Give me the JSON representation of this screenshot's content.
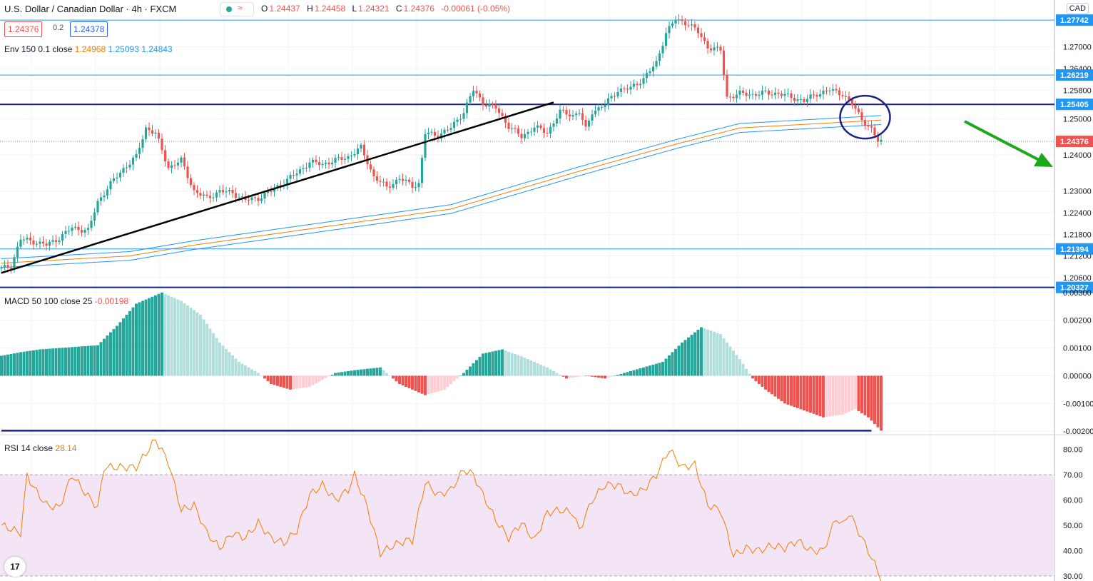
{
  "header": {
    "title": "U.S. Dollar / Canadian Dollar · 4h · FXCM",
    "ohlc": [
      {
        "k": "O",
        "v": "1.24437"
      },
      {
        "k": "H",
        "v": "1.24458"
      },
      {
        "k": "L",
        "v": "1.24321"
      },
      {
        "k": "C",
        "v": "1.24376"
      },
      {
        "k": "",
        "v": "-0.00061 (-0.05%)"
      }
    ],
    "sell_price": "1.24376",
    "spread": "0.2",
    "buy_price": "1.24378",
    "currency": "CAD"
  },
  "indicators": {
    "env_label": "Env 150 0.1 close",
    "env_values": [
      "1.24968",
      "1.25093",
      "1.24843"
    ],
    "macd_label": "MACD 50 100 close 25",
    "macd_value": "-0.00198",
    "rsi_label": "RSI 14 close",
    "rsi_value": "28.14"
  },
  "colors": {
    "up": "#26a69a",
    "down": "#ef5350",
    "hist_up_strong": "#26a69a",
    "hist_up_weak": "#b2dfdb",
    "hist_down_strong": "#ef5350",
    "hist_down_weak": "#ffcdd2",
    "env_mid": "#f57c00",
    "env_band": "#2196f3",
    "level_line": "#2196f3",
    "dark_line": "#1a237e",
    "rsi_line": "#f57c00",
    "rsi_band": "#f3e5f5",
    "arrow": "#1ba91b",
    "price_tag": "#2196f3",
    "current_tag": "#ef5350"
  },
  "chart_data": [
    {
      "type": "candlestick",
      "pane": "price",
      "ylim": [
        1.203,
        1.283
      ],
      "y_ticks": [
        "1.20600",
        "1.21200",
        "1.21800",
        "1.22400",
        "1.23000",
        "1.24000",
        "1.25000",
        "1.25800",
        "1.26400",
        "1.27000"
      ],
      "horizontal_levels": [
        {
          "value": 1.27742,
          "label": "1.27742",
          "style": "thin"
        },
        {
          "value": 1.26219,
          "label": "1.26219",
          "style": "thin"
        },
        {
          "value": 1.25405,
          "label": "1.25405",
          "style": "thick"
        },
        {
          "value": 1.21394,
          "label": "1.21394",
          "style": "thin"
        },
        {
          "value": 1.20327,
          "label": "1.20327",
          "style": "thick"
        }
      ],
      "current_price": {
        "value": 1.24376,
        "label": "1.24376"
      },
      "trendline": {
        "from": [
          0,
          1.2073
        ],
        "to": [
          172,
          1.2546
        ]
      },
      "close_anchors": [
        [
          0,
          1.2085
        ],
        [
          3,
          1.2092
        ],
        [
          6,
          1.2167
        ],
        [
          10,
          1.216
        ],
        [
          14,
          1.215
        ],
        [
          18,
          1.217
        ],
        [
          22,
          1.2198
        ],
        [
          27,
          1.219
        ],
        [
          30,
          1.227
        ],
        [
          34,
          1.232
        ],
        [
          38,
          1.2362
        ],
        [
          42,
          1.2395
        ],
        [
          45,
          1.2475
        ],
        [
          48,
          1.246
        ],
        [
          52,
          1.2365
        ],
        [
          56,
          1.2385
        ],
        [
          60,
          1.23
        ],
        [
          64,
          1.228
        ],
        [
          68,
          1.23
        ],
        [
          72,
          1.2295
        ],
        [
          76,
          1.2275
        ],
        [
          80,
          1.228
        ],
        [
          84,
          1.23
        ],
        [
          88,
          1.2325
        ],
        [
          92,
          1.235
        ],
        [
          96,
          1.238
        ],
        [
          100,
          1.2375
        ],
        [
          104,
          1.2385
        ],
        [
          108,
          1.2395
        ],
        [
          112,
          1.242
        ],
        [
          116,
          1.234
        ],
        [
          120,
          1.231
        ],
        [
          124,
          1.2335
        ],
        [
          128,
          1.2315
        ],
        [
          130,
          1.232
        ],
        [
          132,
          1.246
        ],
        [
          136,
          1.2455
        ],
        [
          140,
          1.2475
        ],
        [
          144,
          1.252
        ],
        [
          147,
          1.258
        ],
        [
          150,
          1.2545
        ],
        [
          154,
          1.253
        ],
        [
          158,
          1.248
        ],
        [
          162,
          1.245
        ],
        [
          166,
          1.2478
        ],
        [
          170,
          1.2462
        ],
        [
          174,
          1.252
        ],
        [
          178,
          1.251
        ],
        [
          180,
          1.252
        ],
        [
          182,
          1.247
        ],
        [
          184,
          1.252
        ],
        [
          188,
          1.254
        ],
        [
          192,
          1.258
        ],
        [
          196,
          1.2585
        ],
        [
          200,
          1.2612
        ],
        [
          204,
          1.2655
        ],
        [
          207,
          1.274
        ],
        [
          210,
          1.2775
        ],
        [
          214,
          1.2765
        ],
        [
          217,
          1.274
        ],
        [
          220,
          1.27
        ],
        [
          224,
          1.269
        ],
        [
          226,
          1.256
        ],
        [
          230,
          1.257
        ],
        [
          234,
          1.2568
        ],
        [
          238,
          1.2572
        ],
        [
          242,
          1.2571
        ],
        [
          246,
          1.256
        ],
        [
          250,
          1.255
        ],
        [
          254,
          1.257
        ],
        [
          258,
          1.258
        ],
        [
          262,
          1.257
        ],
        [
          265,
          1.254
        ],
        [
          268,
          1.25
        ],
        [
          271,
          1.247
        ],
        [
          273,
          1.2438
        ]
      ],
      "envelope": {
        "period": 150,
        "percent": 0.1,
        "mid_anchors": [
          [
            0,
            1.21
          ],
          [
            40,
            1.212
          ],
          [
            60,
            1.215
          ],
          [
            100,
            1.22
          ],
          [
            140,
            1.225
          ],
          [
            180,
            1.2355
          ],
          [
            210,
            1.243
          ],
          [
            230,
            1.2475
          ],
          [
            260,
            1.249
          ],
          [
            274,
            1.2497
          ]
        ]
      }
    },
    {
      "type": "histogram",
      "pane": "macd",
      "ylim": [
        -0.0021,
        0.0031
      ],
      "y_ticks": [
        "0.00300",
        "0.00200",
        "0.00100",
        "0.00000",
        "-0.00100",
        "-0.00200"
      ],
      "anchors": [
        [
          0,
          0.00072
        ],
        [
          6,
          0.00085
        ],
        [
          12,
          0.00095
        ],
        [
          18,
          0.001
        ],
        [
          24,
          0.00105
        ],
        [
          30,
          0.0011
        ],
        [
          36,
          0.0018
        ],
        [
          42,
          0.0026
        ],
        [
          50,
          0.003
        ],
        [
          56,
          0.0027
        ],
        [
          62,
          0.0022
        ],
        [
          68,
          0.0012
        ],
        [
          74,
          0.0005
        ],
        [
          80,
          0.0001
        ],
        [
          84,
          -0.0003
        ],
        [
          90,
          -0.0005
        ],
        [
          96,
          -0.0004
        ],
        [
          104,
          0.0001
        ],
        [
          110,
          0.0002
        ],
        [
          118,
          0.0003
        ],
        [
          124,
          -0.0003
        ],
        [
          132,
          -0.0007
        ],
        [
          138,
          -0.0005
        ],
        [
          144,
          0.0001
        ],
        [
          150,
          0.0008
        ],
        [
          156,
          0.00095
        ],
        [
          162,
          0.0007
        ],
        [
          170,
          0.0003
        ],
        [
          176,
          -0.0001
        ],
        [
          182,
          0.0
        ],
        [
          188,
          -0.0001
        ],
        [
          194,
          0.0001
        ],
        [
          200,
          0.0003
        ],
        [
          206,
          0.0005
        ],
        [
          212,
          0.0012
        ],
        [
          218,
          0.00175
        ],
        [
          224,
          0.0015
        ],
        [
          230,
          0.0006
        ],
        [
          234,
          -0.0001
        ],
        [
          238,
          -0.0005
        ],
        [
          244,
          -0.001
        ],
        [
          250,
          -0.00125
        ],
        [
          256,
          -0.0015
        ],
        [
          262,
          -0.0014
        ],
        [
          266,
          -0.0012
        ],
        [
          270,
          -0.0015
        ],
        [
          274,
          -0.00198
        ]
      ]
    },
    {
      "type": "line",
      "pane": "rsi",
      "ylim": [
        28,
        85
      ],
      "y_ticks": [
        "80.00",
        "70.00",
        "60.00",
        "50.00",
        "40.00",
        "30.00"
      ],
      "band": [
        30,
        70
      ],
      "anchors": [
        [
          0,
          50
        ],
        [
          6,
          47
        ],
        [
          8,
          70
        ],
        [
          10,
          65
        ],
        [
          14,
          58
        ],
        [
          18,
          57
        ],
        [
          22,
          70
        ],
        [
          26,
          63
        ],
        [
          30,
          57
        ],
        [
          32,
          73
        ],
        [
          36,
          73
        ],
        [
          42,
          73
        ],
        [
          48,
          84
        ],
        [
          52,
          75
        ],
        [
          56,
          56
        ],
        [
          60,
          58
        ],
        [
          64,
          47
        ],
        [
          68,
          41
        ],
        [
          72,
          47
        ],
        [
          76,
          45
        ],
        [
          80,
          51
        ],
        [
          84,
          45
        ],
        [
          88,
          43
        ],
        [
          92,
          48
        ],
        [
          96,
          62
        ],
        [
          100,
          66
        ],
        [
          104,
          60
        ],
        [
          108,
          64
        ],
        [
          110,
          70
        ],
        [
          114,
          57
        ],
        [
          118,
          39
        ],
        [
          122,
          42
        ],
        [
          126,
          44
        ],
        [
          128,
          44
        ],
        [
          132,
          67
        ],
        [
          136,
          62
        ],
        [
          140,
          64
        ],
        [
          144,
          72
        ],
        [
          147,
          70
        ],
        [
          150,
          62
        ],
        [
          154,
          52
        ],
        [
          158,
          45
        ],
        [
          162,
          51
        ],
        [
          166,
          44
        ],
        [
          170,
          55
        ],
        [
          174,
          56
        ],
        [
          178,
          55
        ],
        [
          180,
          48
        ],
        [
          184,
          60
        ],
        [
          188,
          66
        ],
        [
          192,
          66
        ],
        [
          196,
          62
        ],
        [
          200,
          64
        ],
        [
          204,
          70
        ],
        [
          208,
          80
        ],
        [
          212,
          73
        ],
        [
          216,
          74
        ],
        [
          220,
          58
        ],
        [
          224,
          56
        ],
        [
          228,
          38
        ],
        [
          232,
          41
        ],
        [
          236,
          40
        ],
        [
          240,
          42
        ],
        [
          244,
          41
        ],
        [
          248,
          44
        ],
        [
          252,
          40
        ],
        [
          256,
          40
        ],
        [
          260,
          53
        ],
        [
          262,
          50
        ],
        [
          264,
          55
        ],
        [
          268,
          45
        ],
        [
          270,
          40
        ],
        [
          274,
          29
        ]
      ]
    }
  ]
}
